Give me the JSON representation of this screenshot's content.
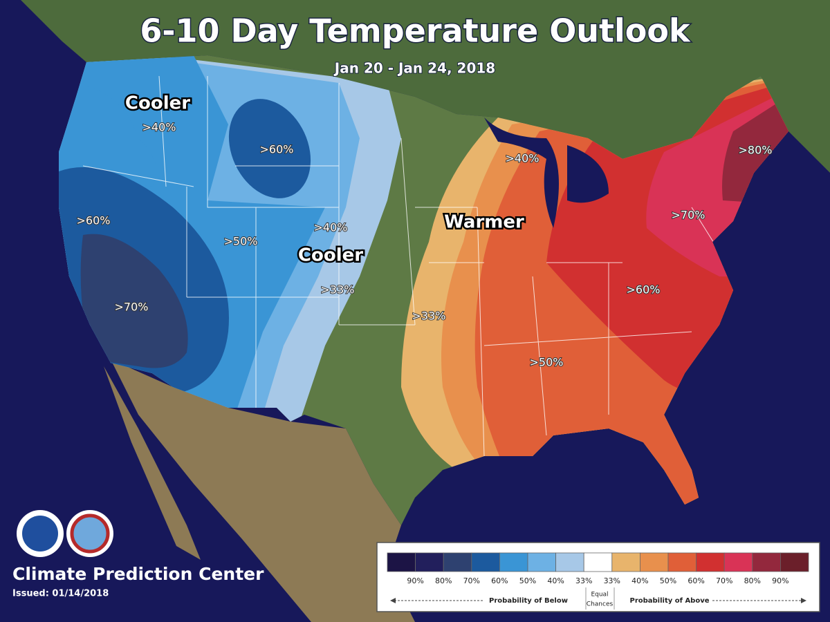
{
  "header": {
    "title": "6-10 Day Temperature Outlook",
    "subtitle": "Jan 20 - Jan 24, 2018"
  },
  "map_labels": {
    "regions": [
      "Cooler",
      "Cooler",
      "Warmer"
    ],
    "probabilities": [
      ">40%",
      ">60%",
      ">60%",
      ">70%",
      ">50%",
      ">40%",
      ">33%",
      ">33%",
      ">40%",
      ">50%",
      ">60%",
      ">70%",
      ">80%"
    ]
  },
  "legend": {
    "colors": [
      "#1c1445",
      "#221f5c",
      "#2e4170",
      "#1c5a9e",
      "#3a95d5",
      "#6db1e4",
      "#a7c8e7",
      "#ffffff",
      "#e8b46c",
      "#e8904d",
      "#e05f38",
      "#d13030",
      "#d93356",
      "#93283d",
      "#6b1f2a"
    ],
    "labels": [
      "90%",
      "80%",
      "70%",
      "60%",
      "50%",
      "40%",
      "33%",
      "33%",
      "40%",
      "50%",
      "60%",
      "70%",
      "80%",
      "90%"
    ],
    "below": "Probability of Below",
    "equal": [
      "Equal",
      "Chances"
    ],
    "above": "Probability of Above"
  },
  "footer": {
    "organization": "Climate Prediction Center",
    "issued": "Issued: 01/14/2018"
  }
}
